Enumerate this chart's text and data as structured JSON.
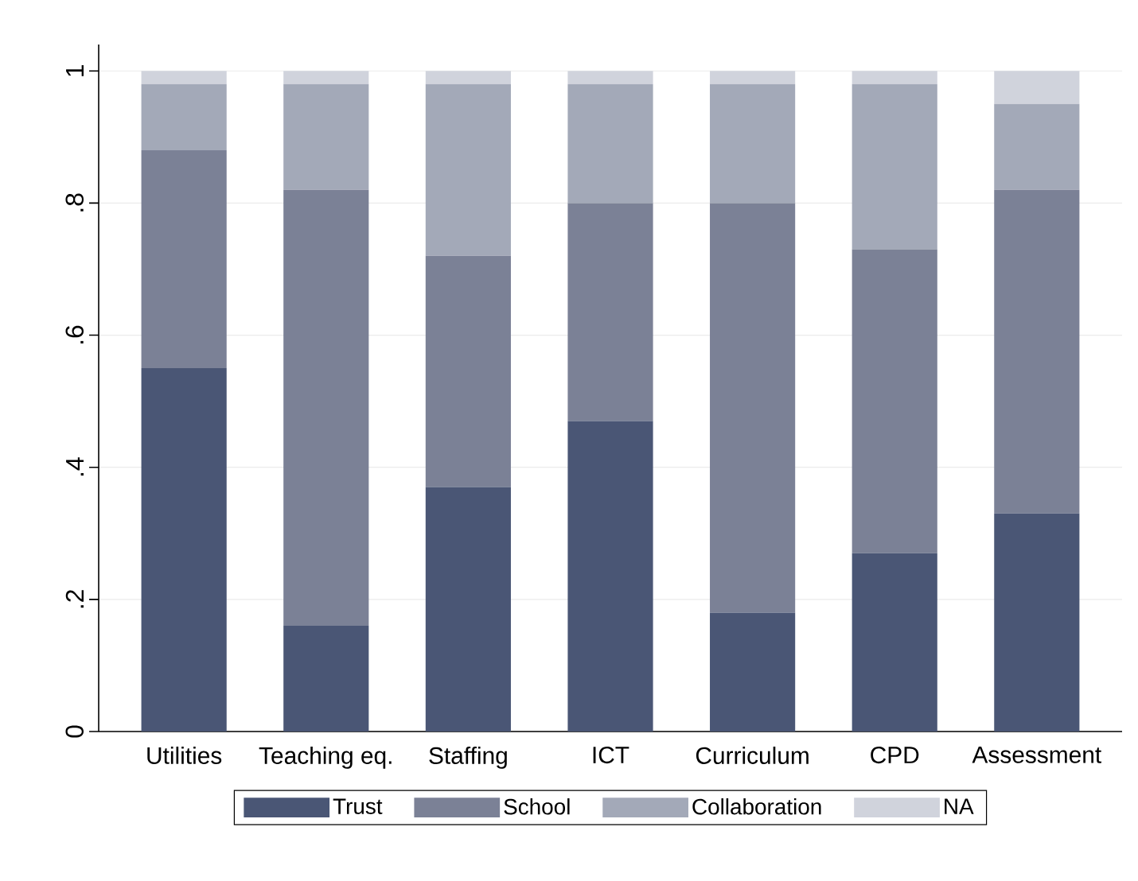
{
  "chart_data": {
    "type": "bar",
    "stacked": true,
    "categories": [
      "Utilities",
      "Teaching eq.",
      "Staffing",
      "ICT",
      "Curriculum",
      "CPD",
      "Assessment"
    ],
    "series": [
      {
        "name": "Trust",
        "color": "#4a5675",
        "values": [
          0.55,
          0.16,
          0.37,
          0.47,
          0.18,
          0.27,
          0.33
        ]
      },
      {
        "name": "School",
        "color": "#7b8196",
        "values": [
          0.33,
          0.66,
          0.35,
          0.33,
          0.62,
          0.46,
          0.49
        ]
      },
      {
        "name": "Collaboration",
        "color": "#a3a9b8",
        "values": [
          0.1,
          0.16,
          0.26,
          0.18,
          0.18,
          0.25,
          0.13
        ]
      },
      {
        "name": "NA",
        "color": "#d0d3dc",
        "values": [
          0.02,
          0.02,
          0.02,
          0.02,
          0.02,
          0.02,
          0.05
        ]
      }
    ],
    "ylim": [
      0,
      1.04
    ],
    "yticks": [
      0,
      {
        "value": 0.2,
        "label": ".2"
      },
      {
        "value": 0.4,
        "label": ".4"
      },
      {
        "value": 0.6,
        "label": ".6"
      },
      {
        "value": 0.8,
        "label": ".8"
      },
      1
    ],
    "grid": "y",
    "legend": "bottom"
  }
}
